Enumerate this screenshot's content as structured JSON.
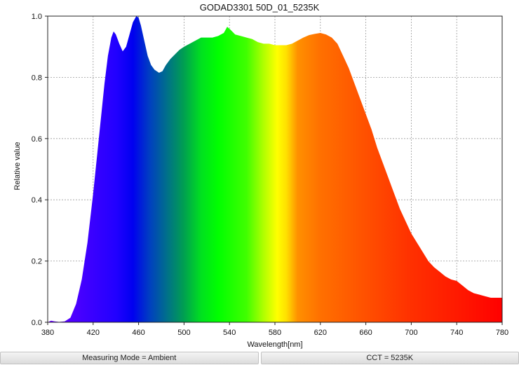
{
  "chart_data": {
    "type": "area",
    "title": "GODAD3301 50D_01_5235K",
    "xlabel": "Wavelength[nm]",
    "ylabel": "Relative value",
    "xlim": [
      380,
      780
    ],
    "ylim": [
      0,
      1.0
    ],
    "x_ticks": [
      "380",
      "420",
      "460",
      "500",
      "540",
      "580",
      "620",
      "660",
      "700",
      "740",
      "780"
    ],
    "y_ticks": [
      "0.0",
      "0.2",
      "0.4",
      "0.6",
      "0.8",
      "1.0"
    ],
    "grid": true,
    "fill": "visible-spectrum-gradient",
    "series": [
      {
        "x": [
          380,
          383,
          386,
          390,
          395,
          400,
          405,
          410,
          415,
          420,
          425,
          430,
          433,
          436,
          438,
          440,
          443,
          446,
          449,
          452,
          455,
          458,
          460,
          462,
          465,
          468,
          471,
          474,
          478,
          481,
          484,
          488,
          492,
          496,
          500,
          505,
          510,
          515,
          520,
          525,
          530,
          535,
          538,
          541,
          545,
          550,
          555,
          560,
          565,
          570,
          575,
          580,
          585,
          590,
          595,
          600,
          605,
          610,
          615,
          620,
          625,
          630,
          635,
          640,
          645,
          650,
          655,
          660,
          665,
          670,
          675,
          680,
          685,
          690,
          695,
          700,
          705,
          710,
          715,
          720,
          725,
          730,
          735,
          740,
          745,
          750,
          755,
          760,
          765,
          770,
          775,
          780
        ],
        "y": [
          0.0,
          0.005,
          0.003,
          0.001,
          0.003,
          0.015,
          0.06,
          0.14,
          0.26,
          0.42,
          0.6,
          0.78,
          0.87,
          0.93,
          0.95,
          0.94,
          0.91,
          0.885,
          0.9,
          0.94,
          0.98,
          1.0,
          0.995,
          0.97,
          0.92,
          0.87,
          0.84,
          0.825,
          0.815,
          0.82,
          0.84,
          0.86,
          0.875,
          0.89,
          0.9,
          0.91,
          0.92,
          0.93,
          0.93,
          0.93,
          0.935,
          0.945,
          0.965,
          0.955,
          0.94,
          0.935,
          0.93,
          0.925,
          0.915,
          0.91,
          0.91,
          0.905,
          0.905,
          0.905,
          0.91,
          0.92,
          0.93,
          0.938,
          0.942,
          0.945,
          0.94,
          0.93,
          0.91,
          0.87,
          0.83,
          0.78,
          0.73,
          0.68,
          0.63,
          0.57,
          0.52,
          0.47,
          0.42,
          0.37,
          0.33,
          0.29,
          0.26,
          0.23,
          0.2,
          0.18,
          0.165,
          0.15,
          0.14,
          0.135,
          0.12,
          0.105,
          0.095,
          0.09,
          0.085,
          0.08,
          0.08,
          0.08
        ]
      }
    ]
  },
  "status": {
    "measuring_mode": "Measuring Mode = Ambient",
    "cct": "CCT = 5235K"
  }
}
